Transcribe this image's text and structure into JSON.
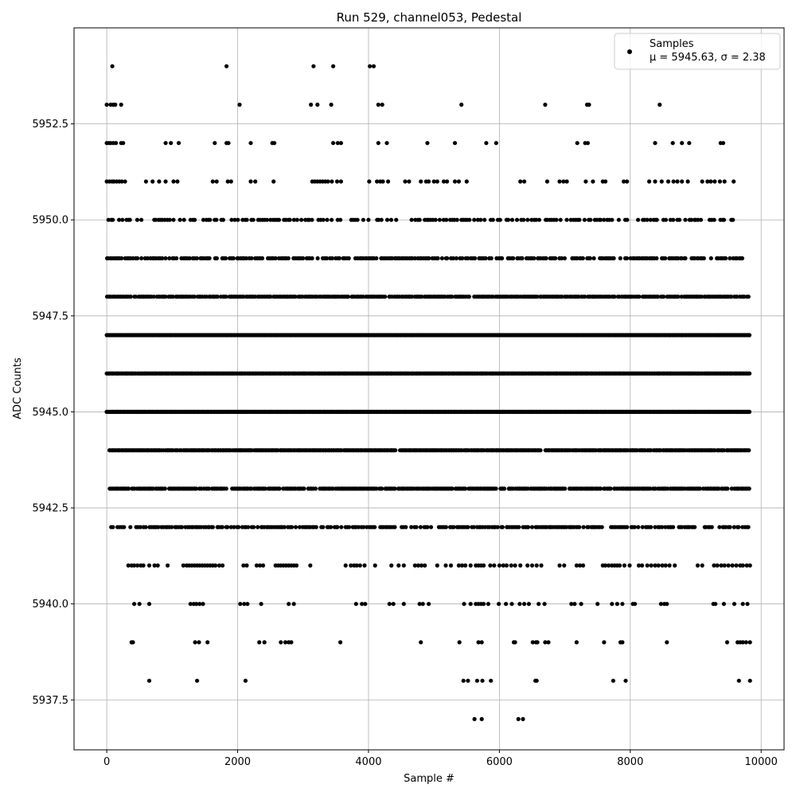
{
  "chart_data": {
    "type": "scatter",
    "title": "Run 529, channel053, Pedestal",
    "xlabel": "Sample #",
    "ylabel": "ADC Counts",
    "xlim": [
      -500,
      10350
    ],
    "ylim": [
      5936.2,
      5955.0
    ],
    "x_ticks": [
      0,
      2000,
      4000,
      6000,
      8000,
      10000
    ],
    "x_tick_labels": [
      "0",
      "2000",
      "4000",
      "6000",
      "8000",
      "10000"
    ],
    "y_ticks": [
      5937.5,
      5940.0,
      5942.5,
      5945.0,
      5947.5,
      5950.0,
      5952.5
    ],
    "y_tick_labels": [
      "5937.5",
      "5940.0",
      "5942.5",
      "5945.0",
      "5947.5",
      "5950.0",
      "5952.5"
    ],
    "grid": true,
    "legend_position": "top-right",
    "marker_color": "#000000",
    "series": [
      {
        "name": "Samples",
        "annotation": "μ = 5945.63, σ = 2.38",
        "x_range": [
          0,
          9830
        ],
        "levels": [
          {
            "y": 5954,
            "x": [
              85,
              1830,
              3160,
              3460,
              4020,
              4080
            ]
          },
          {
            "y": 5953,
            "x": [
              0,
              60,
              100,
              130,
              220,
              2030,
              3120,
              3220,
              3430,
              4150,
              4210,
              5420,
              6700,
              7340,
              7370,
              8450
            ]
          },
          {
            "y": 5952,
            "x": [
              0,
              30,
              60,
              100,
              140,
              220,
              250,
              900,
              980,
              1100,
              1650,
              1830,
              1860,
              2200,
              2530,
              2560,
              3460,
              3530,
              3580,
              4150,
              4280,
              4900,
              5320,
              5800,
              5950,
              7190,
              7310,
              7350,
              8380,
              8650,
              8790,
              8900,
              9380,
              9420
            ]
          },
          {
            "y": 5951,
            "x": [
              0,
              40,
              80,
              110,
              150,
              190,
              230,
              280,
              600,
              700,
              800,
              900,
              1020,
              1080,
              1620,
              1680,
              1850,
              1900,
              2200,
              2270,
              2550,
              3140,
              3180,
              3220,
              3260,
              3300,
              3340,
              3380,
              3440,
              3520,
              3580,
              4010,
              4130,
              4180,
              4220,
              4300,
              4560,
              4620,
              4800,
              4880,
              4920,
              5000,
              5050,
              5150,
              5200,
              5320,
              5380,
              5500,
              6320,
              6380,
              6730,
              6920,
              6980,
              7030,
              7320,
              7430,
              7580,
              7620,
              7900,
              7950,
              8290,
              8380,
              8480,
              8580,
              8660,
              8720,
              8790,
              8880,
              9100,
              9180,
              9230,
              9290,
              9370,
              9440,
              9580
            ]
          },
          {
            "y": 5950,
            "dense_from": 0,
            "dense_to": 9600,
            "step": 33,
            "density": 0.6
          },
          {
            "y": 5949,
            "dense_from": 0,
            "dense_to": 9730,
            "step": 28,
            "density": 0.75
          },
          {
            "y": 5948,
            "dense_from": 0,
            "dense_to": 9830,
            "step": 22,
            "density": 0.88
          },
          {
            "y": 5947,
            "dense_from": 0,
            "dense_to": 9830,
            "step": 16,
            "density": 1.0
          },
          {
            "y": 5946,
            "dense_from": 0,
            "dense_to": 9830,
            "step": 16,
            "density": 1.0
          },
          {
            "y": 5945,
            "dense_from": 0,
            "dense_to": 9830,
            "step": 16,
            "density": 1.0
          },
          {
            "y": 5944,
            "dense_from": 40,
            "dense_to": 9830,
            "step": 18,
            "density": 0.95
          },
          {
            "y": 5943,
            "dense_from": 50,
            "dense_to": 9830,
            "step": 22,
            "density": 0.85
          },
          {
            "y": 5942,
            "dense_from": 60,
            "dense_to": 9830,
            "step": 28,
            "density": 0.72
          },
          {
            "y": 5941,
            "x": [
              330,
              380,
              420,
              470,
              520,
              560,
              650,
              730,
              780,
              930,
              1170,
              1220,
              1260,
              1300,
              1340,
              1380,
              1420,
              1460,
              1500,
              1540,
              1580,
              1620,
              1660,
              1720,
              1770,
              2090,
              2140,
              2290,
              2340,
              2390,
              2580,
              2620,
              2660,
              2700,
              2740,
              2780,
              2820,
              2860,
              2900,
              3110,
              3650,
              3730,
              3780,
              3820,
              3870,
              3940,
              4100,
              4350,
              4460,
              4540,
              4710,
              4760,
              4810,
              4860,
              5050,
              5180,
              5260,
              5380,
              5430,
              5480,
              5560,
              5640,
              5680,
              5720,
              5760,
              5860,
              5920,
              6000,
              6060,
              6110,
              6180,
              6240,
              6320,
              6430,
              6500,
              6570,
              6640,
              6920,
              6990,
              7180,
              7230,
              7280,
              7580,
              7620,
              7670,
              7720,
              7760,
              7800,
              7840,
              7910,
              7990,
              8130,
              8180,
              8260,
              8320,
              8380,
              8430,
              8490,
              8540,
              8600,
              8680,
              9030,
              9100,
              9280,
              9330,
              9390,
              9440,
              9500,
              9560,
              9620,
              9680,
              9720,
              9780,
              9830
            ]
          },
          {
            "y": 5940,
            "x": [
              420,
              500,
              650,
              1280,
              1330,
              1370,
              1420,
              1470,
              2040,
              2100,
              2150,
              2360,
              2780,
              2860,
              3810,
              3900,
              3950,
              4320,
              4380,
              4540,
              4780,
              4830,
              4920,
              5460,
              5560,
              5640,
              5680,
              5720,
              5760,
              5830,
              5990,
              6100,
              6190,
              6310,
              6380,
              6450,
              6600,
              6690,
              7100,
              7150,
              7250,
              7500,
              7720,
              7800,
              7880,
              8040,
              8070,
              8470,
              8520,
              8560,
              9270,
              9300,
              9430,
              9590,
              9720,
              9790
            ]
          },
          {
            "y": 5939,
            "x": [
              380,
              400,
              1350,
              1410,
              1540,
              2330,
              2410,
              2660,
              2730,
              2780,
              2820,
              3570,
              4800,
              5390,
              5680,
              5730,
              6220,
              6240,
              6510,
              6560,
              6580,
              6700,
              6750,
              7180,
              7600,
              7850,
              7880,
              8560,
              9480,
              9640,
              9680,
              9720,
              9770,
              9830
            ]
          },
          {
            "y": 5938,
            "x": [
              650,
              1380,
              2120,
              5450,
              5520,
              5660,
              5740,
              5870,
              6550,
              6570,
              7740,
              7930,
              9660,
              9830
            ]
          },
          {
            "y": 5937,
            "x": [
              5620,
              5730,
              6290,
              6360
            ]
          }
        ]
      }
    ]
  }
}
